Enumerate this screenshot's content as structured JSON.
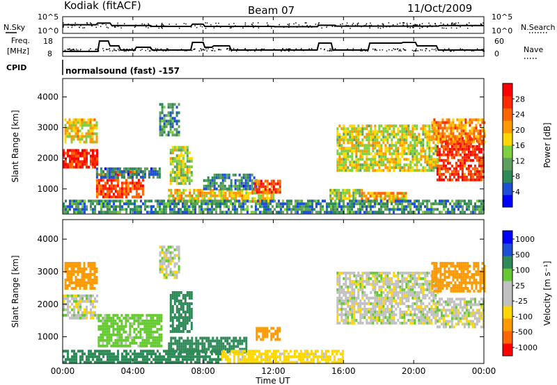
{
  "header": {
    "station": "Kodiak (fitACF)",
    "beam": "Beam 07",
    "date": "11/Oct/2009"
  },
  "labels": {
    "nsky": "N.Sky",
    "nsearch": "N.Search",
    "freq_line1": "Freq.",
    "freq_line2": "[MHz]",
    "nave": "Nave",
    "cpid": "CPID",
    "cpid_value": "normalsound (fast) -157",
    "noise_left_top": "10^5",
    "noise_left_bottom": "10^0",
    "noise_right_top": "10^5",
    "noise_right_bottom": "10^0",
    "freq_18": "18",
    "freq_8": "8",
    "nave_60": "60",
    "nave_0": "0"
  },
  "colors": {
    "power_scale": [
      "#0000ff",
      "#1f4fd6",
      "#2e8b57",
      "#5fa05f",
      "#7fd040",
      "#ffd700",
      "#ff9900",
      "#ff6600",
      "#ff2a00",
      "#ff0000"
    ],
    "velocity_scale": [
      "#ff0000",
      "#ff6600",
      "#ff9900",
      "#ffd700",
      "#c0c0c0",
      "#c0c0c0",
      "#66c833",
      "#2e8b57",
      "#1f4fd6",
      "#0000ff"
    ],
    "line": "#000000",
    "ground_scatter": "#bbbbbb"
  },
  "chart_data": [
    {
      "type": "heatmap",
      "name": "power",
      "xlabel": "Time UT",
      "ylabel": "Slant Range [km]",
      "xlim": [
        0,
        24
      ],
      "ylim": [
        180,
        4600
      ],
      "x_ticks": [
        "00:00",
        "04:00",
        "08:00",
        "12:00",
        "16:00",
        "20:00",
        "00:00"
      ],
      "y_ticks": [
        1000,
        2000,
        3000,
        4000
      ],
      "colorbar": {
        "label": "Power [dB]",
        "min": 0,
        "max": 32,
        "ticks": [
          4,
          8,
          12,
          16,
          20,
          24,
          28
        ]
      },
      "regions": [
        {
          "t0": 0.0,
          "t1": 2.0,
          "r0": 1700,
          "r1": 2300,
          "value": 28
        },
        {
          "t0": 0.1,
          "t1": 2.0,
          "r0": 2500,
          "r1": 3300,
          "value": 18
        },
        {
          "t0": 1.9,
          "t1": 4.6,
          "r0": 750,
          "r1": 1600,
          "value": 26
        },
        {
          "t0": 1.9,
          "t1": 5.5,
          "r0": 1400,
          "r1": 1700,
          "value": 8
        },
        {
          "t0": 5.5,
          "t1": 6.6,
          "r0": 2800,
          "r1": 3800,
          "value": 9
        },
        {
          "t0": 6.1,
          "t1": 7.3,
          "r0": 1200,
          "r1": 2400,
          "value": 15
        },
        {
          "t0": 6.0,
          "t1": 12.0,
          "r0": 550,
          "r1": 1000,
          "value": 18
        },
        {
          "t0": 8.0,
          "t1": 11.0,
          "r0": 1000,
          "r1": 1500,
          "value": 8
        },
        {
          "t0": 10.9,
          "t1": 12.4,
          "r0": 900,
          "r1": 1300,
          "value": 26
        },
        {
          "t0": 15.2,
          "t1": 17.0,
          "r0": 700,
          "r1": 1000,
          "value": 15
        },
        {
          "t0": 17.0,
          "t1": 19.6,
          "r0": 600,
          "r1": 900,
          "value": 20
        },
        {
          "t0": 15.6,
          "t1": 21.4,
          "r0": 1600,
          "r1": 3100,
          "value": 17
        },
        {
          "t0": 21.3,
          "t1": 24.0,
          "r0": 1300,
          "r1": 2700,
          "value": 27
        },
        {
          "t0": 21.0,
          "t1": 24.0,
          "r0": 2500,
          "r1": 3300,
          "value": 22
        },
        {
          "t0": 0.0,
          "t1": 24.0,
          "r0": 200,
          "r1": 650,
          "value": 9
        }
      ]
    },
    {
      "type": "heatmap",
      "name": "velocity",
      "xlabel": "Time UT",
      "ylabel": "Slant Range [km]",
      "xlim": [
        0,
        24
      ],
      "ylim": [
        180,
        4600
      ],
      "x_ticks": [
        "00:00",
        "04:00",
        "08:00",
        "12:00",
        "16:00",
        "20:00",
        "00:00"
      ],
      "y_ticks": [
        1000,
        2000,
        3000,
        4000
      ],
      "colorbar": {
        "label": "Velocity [m s⁻¹]",
        "ticks": [
          1000,
          500,
          100,
          25,
          -25,
          -100,
          -500,
          -1000
        ]
      },
      "regions": [
        {
          "t0": 0.0,
          "t1": 2.0,
          "r0": 1600,
          "r1": 2300,
          "value": 0
        },
        {
          "t0": 0.1,
          "t1": 2.0,
          "r0": 2500,
          "r1": 3300,
          "value": -400
        },
        {
          "t0": 2.0,
          "t1": 5.6,
          "r0": 700,
          "r1": 1700,
          "value": 60
        },
        {
          "t0": 5.5,
          "t1": 6.6,
          "r0": 2800,
          "r1": 3800,
          "value": 0
        },
        {
          "t0": 6.1,
          "t1": 7.3,
          "r0": 1200,
          "r1": 2400,
          "value": 200
        },
        {
          "t0": 6.0,
          "t1": 10.5,
          "r0": 550,
          "r1": 1000,
          "value": 400
        },
        {
          "t0": 11.0,
          "t1": 12.4,
          "r0": 900,
          "r1": 1300,
          "value": -300
        },
        {
          "t0": 9.0,
          "t1": 16.0,
          "r0": 200,
          "r1": 600,
          "value": -60
        },
        {
          "t0": 15.6,
          "t1": 21.4,
          "r0": 1400,
          "r1": 3000,
          "value": 0
        },
        {
          "t0": 21.3,
          "t1": 24.0,
          "r0": 1300,
          "r1": 2200,
          "value": 0
        },
        {
          "t0": 21.0,
          "t1": 24.0,
          "r0": 2400,
          "r1": 3300,
          "value": -400
        },
        {
          "t0": 0.0,
          "t1": 9.0,
          "r0": 200,
          "r1": 600,
          "value": 150
        }
      ]
    },
    {
      "type": "line",
      "name": "frequency",
      "ylim": [
        8,
        18
      ],
      "series": [
        {
          "x": [
            0,
            2.0,
            2.1,
            2.6,
            2.7,
            3.2,
            3.3,
            4.1,
            4.2,
            5.0,
            5.1,
            7.3,
            7.4,
            8.0,
            8.1,
            8.5,
            8.6,
            9.5,
            9.6,
            14.5,
            14.6,
            15.3,
            15.4,
            17.4,
            17.5,
            19.3,
            19.4,
            20.1,
            20.2,
            21.3,
            21.4,
            24.0
          ],
          "y": [
            10,
            10,
            17.5,
            17.5,
            14,
            14,
            11,
            11,
            13,
            13,
            11,
            11,
            16.5,
            16.5,
            13,
            13,
            14,
            14,
            11,
            11,
            16,
            16,
            11,
            11,
            16,
            16,
            16.5,
            16.5,
            14,
            14,
            11,
            11
          ]
        }
      ]
    },
    {
      "type": "line",
      "name": "noise",
      "ylim": [
        0,
        5
      ],
      "series": [
        {
          "x": [
            0,
            1.9,
            2.0,
            2.7,
            2.8,
            5.0,
            5.1,
            7.3,
            7.4,
            8.0,
            8.1,
            12.0,
            12.1,
            14.5,
            14.6,
            15.5,
            15.6,
            21.4,
            21.5,
            24.0
          ],
          "y": [
            2.6,
            2.6,
            3.2,
            3.2,
            2.3,
            2.3,
            2.0,
            2.0,
            2.8,
            2.8,
            2.0,
            2.0,
            1.9,
            1.9,
            2.4,
            2.4,
            2.1,
            2.1,
            2.3,
            2.3
          ]
        }
      ]
    }
  ]
}
